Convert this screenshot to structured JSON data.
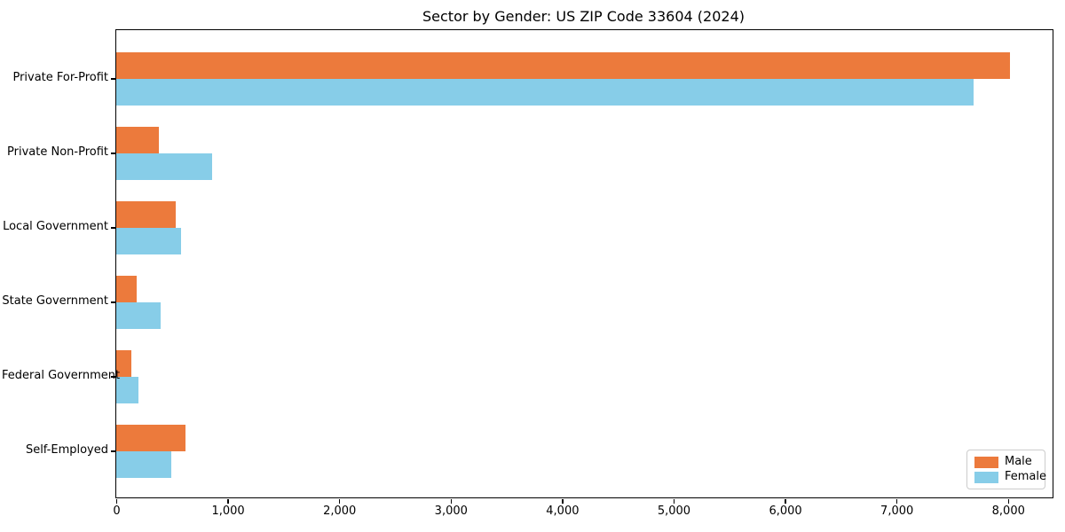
{
  "title": "Sector by Gender: US ZIP Code 33604 (2024)",
  "colors": {
    "male": "#ec7a3c",
    "female": "#87cde8",
    "axis": "#000000",
    "legend_border": "#cccccc",
    "background": "#ffffff"
  },
  "chart_data": {
    "type": "bar",
    "orientation": "horizontal",
    "title": "Sector by Gender: US ZIP Code 33604 (2024)",
    "categories": [
      "Private For-Profit",
      "Private Non-Profit",
      "Local Government",
      "State Government",
      "Federal Government",
      "Self-Employed"
    ],
    "series": [
      {
        "name": "Male",
        "color": "#ec7a3c",
        "values": [
          8020,
          385,
          530,
          185,
          135,
          620
        ]
      },
      {
        "name": "Female",
        "color": "#87cde8",
        "values": [
          7690,
          860,
          580,
          400,
          195,
          495
        ]
      }
    ],
    "xlabel": "",
    "ylabel": "",
    "xlim": [
      0,
      8400
    ],
    "x_ticks": [
      0,
      1000,
      2000,
      3000,
      4000,
      5000,
      6000,
      7000,
      8000
    ],
    "x_tick_labels": [
      "0",
      "1,000",
      "2,000",
      "3,000",
      "4,000",
      "5,000",
      "6,000",
      "7,000",
      "8,000"
    ],
    "legend_position": "lower right",
    "grid": false
  }
}
